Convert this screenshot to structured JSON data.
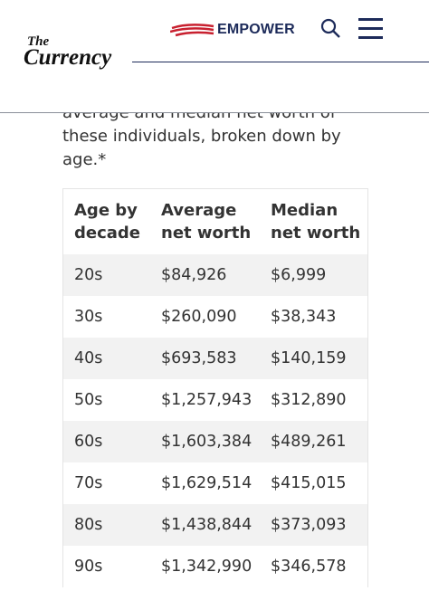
{
  "header": {
    "logo_small": "The",
    "logo_large": "Currency",
    "brand": "EMPOWER"
  },
  "intro": {
    "lines": [
      "average and median net worth of",
      "these individuals, broken down by",
      "age.*"
    ]
  },
  "table": {
    "columns": [
      [
        "Age by",
        "decade"
      ],
      [
        "Average",
        "net worth"
      ],
      [
        "Median",
        "net worth"
      ]
    ],
    "rows": [
      [
        "20s",
        "$84,926",
        "$6,999"
      ],
      [
        "30s",
        "$260,090",
        "$38,343"
      ],
      [
        "40s",
        "$693,583",
        "$140,159"
      ],
      [
        "50s",
        "$1,257,943",
        "$312,890"
      ],
      [
        "60s",
        "$1,603,384",
        "$489,261"
      ],
      [
        "70s",
        "$1,629,514",
        "$415,015"
      ],
      [
        "80s",
        "$1,438,844",
        "$373,093"
      ],
      [
        "90s",
        "$1,342,990",
        "$346,578"
      ]
    ]
  }
}
